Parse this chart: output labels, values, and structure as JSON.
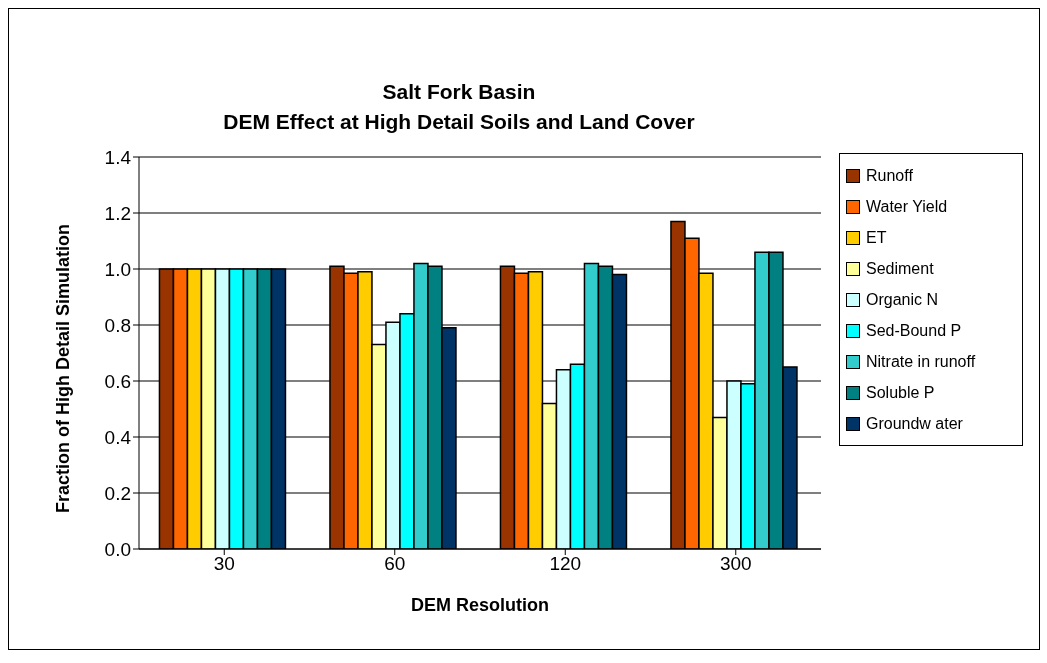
{
  "chart_data": {
    "type": "bar",
    "title": "Salt Fork Basin\nDEM Effect at High Detail Soils and Land Cover",
    "xlabel": "DEM Resolution",
    "ylabel": "Fraction of High Detail Simulation",
    "categories": [
      "30",
      "60",
      "120",
      "300"
    ],
    "ylim": [
      0,
      1.4
    ],
    "yticks": [
      {
        "value": 0,
        "label": "0.0"
      },
      {
        "value": 0.2,
        "label": "0.2"
      },
      {
        "value": 0.4,
        "label": "0.4"
      },
      {
        "value": 0.6,
        "label": "0.6"
      },
      {
        "value": 0.8,
        "label": "0.8"
      },
      {
        "value": 1,
        "label": "1.0"
      },
      {
        "value": 1.2,
        "label": "1.2"
      },
      {
        "value": 1.4,
        "label": "1.4"
      }
    ],
    "grid": "y",
    "legend": "right",
    "series": [
      {
        "name": "Runoff",
        "color": "#993300",
        "values": [
          1.0,
          1.01,
          1.01,
          1.17
        ]
      },
      {
        "name": "Water Yield",
        "color": "#ff6600",
        "values": [
          1.0,
          0.985,
          0.985,
          1.11
        ]
      },
      {
        "name": "ET",
        "color": "#ffcc00",
        "values": [
          1.0,
          0.99,
          0.99,
          0.985
        ]
      },
      {
        "name": "Sediment",
        "color": "#ffff99",
        "values": [
          1.0,
          0.73,
          0.52,
          0.47
        ]
      },
      {
        "name": "Organic N",
        "color": "#ccffff",
        "values": [
          1.0,
          0.81,
          0.64,
          0.6
        ]
      },
      {
        "name": "Sed-Bound P",
        "color": "#00ffff",
        "values": [
          1.0,
          0.84,
          0.66,
          0.59
        ]
      },
      {
        "name": "Nitrate in runoff",
        "color": "#33cccc",
        "values": [
          1.0,
          1.02,
          1.02,
          1.06
        ]
      },
      {
        "name": "Soluble P",
        "color": "#008080",
        "values": [
          1.0,
          1.01,
          1.01,
          1.06
        ]
      },
      {
        "name": "Groundw ater",
        "color": "#003366",
        "values": [
          1.0,
          0.79,
          0.98,
          0.65
        ]
      }
    ]
  }
}
